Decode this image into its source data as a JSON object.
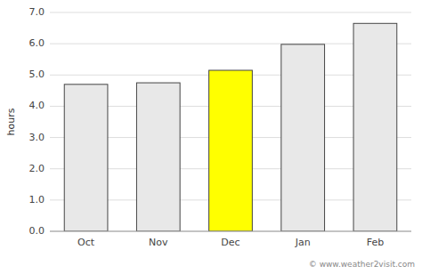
{
  "chart_data": {
    "type": "bar",
    "categories": [
      "Oct",
      "Nov",
      "Dec",
      "Jan",
      "Feb"
    ],
    "values": [
      4.7,
      4.75,
      5.15,
      5.98,
      6.65
    ],
    "colors": [
      "#e8e8e8",
      "#e8e8e8",
      "#ffff00",
      "#e8e8e8",
      "#e8e8e8"
    ],
    "ylabel": "hours",
    "ylim": [
      0,
      7.0
    ],
    "yticks": [
      {
        "value": 0.0,
        "label": "0.0"
      },
      {
        "value": 1.0,
        "label": "1.0"
      },
      {
        "value": 2.0,
        "label": "2.0"
      },
      {
        "value": 3.0,
        "label": "3.0"
      },
      {
        "value": 4.0,
        "label": "4.0"
      },
      {
        "value": 5.0,
        "label": "5.0"
      },
      {
        "value": 6.0,
        "label": "6.0"
      },
      {
        "value": 7.0,
        "label": "7.0"
      }
    ],
    "grid": true,
    "annotations": [
      "© www.weather2visit.com"
    ]
  }
}
